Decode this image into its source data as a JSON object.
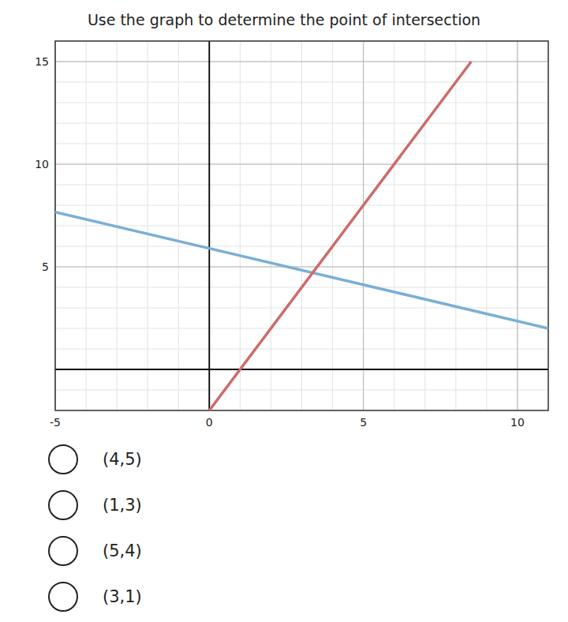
{
  "chart_data": {
    "type": "line",
    "title": "Use the graph to determine the point of intersection",
    "series": [
      {
        "x": [
          -5,
          11
        ],
        "values": [
          7.67,
          2.0
        ],
        "color": "#7bafd4"
      },
      {
        "x": [
          0.0,
          8.5
        ],
        "values": [
          -2.0,
          15.0
        ],
        "color": "#cd6b6b"
      }
    ],
    "xlim": [
      -5,
      11
    ],
    "ylim": [
      -2,
      16
    ],
    "xticks": [
      -5,
      0,
      5,
      10
    ],
    "yticks": [
      5,
      10,
      15
    ],
    "grid": true,
    "annotations": [
      "(4,5)",
      "(1,3)",
      "(5,4)",
      "(3,1)"
    ]
  }
}
